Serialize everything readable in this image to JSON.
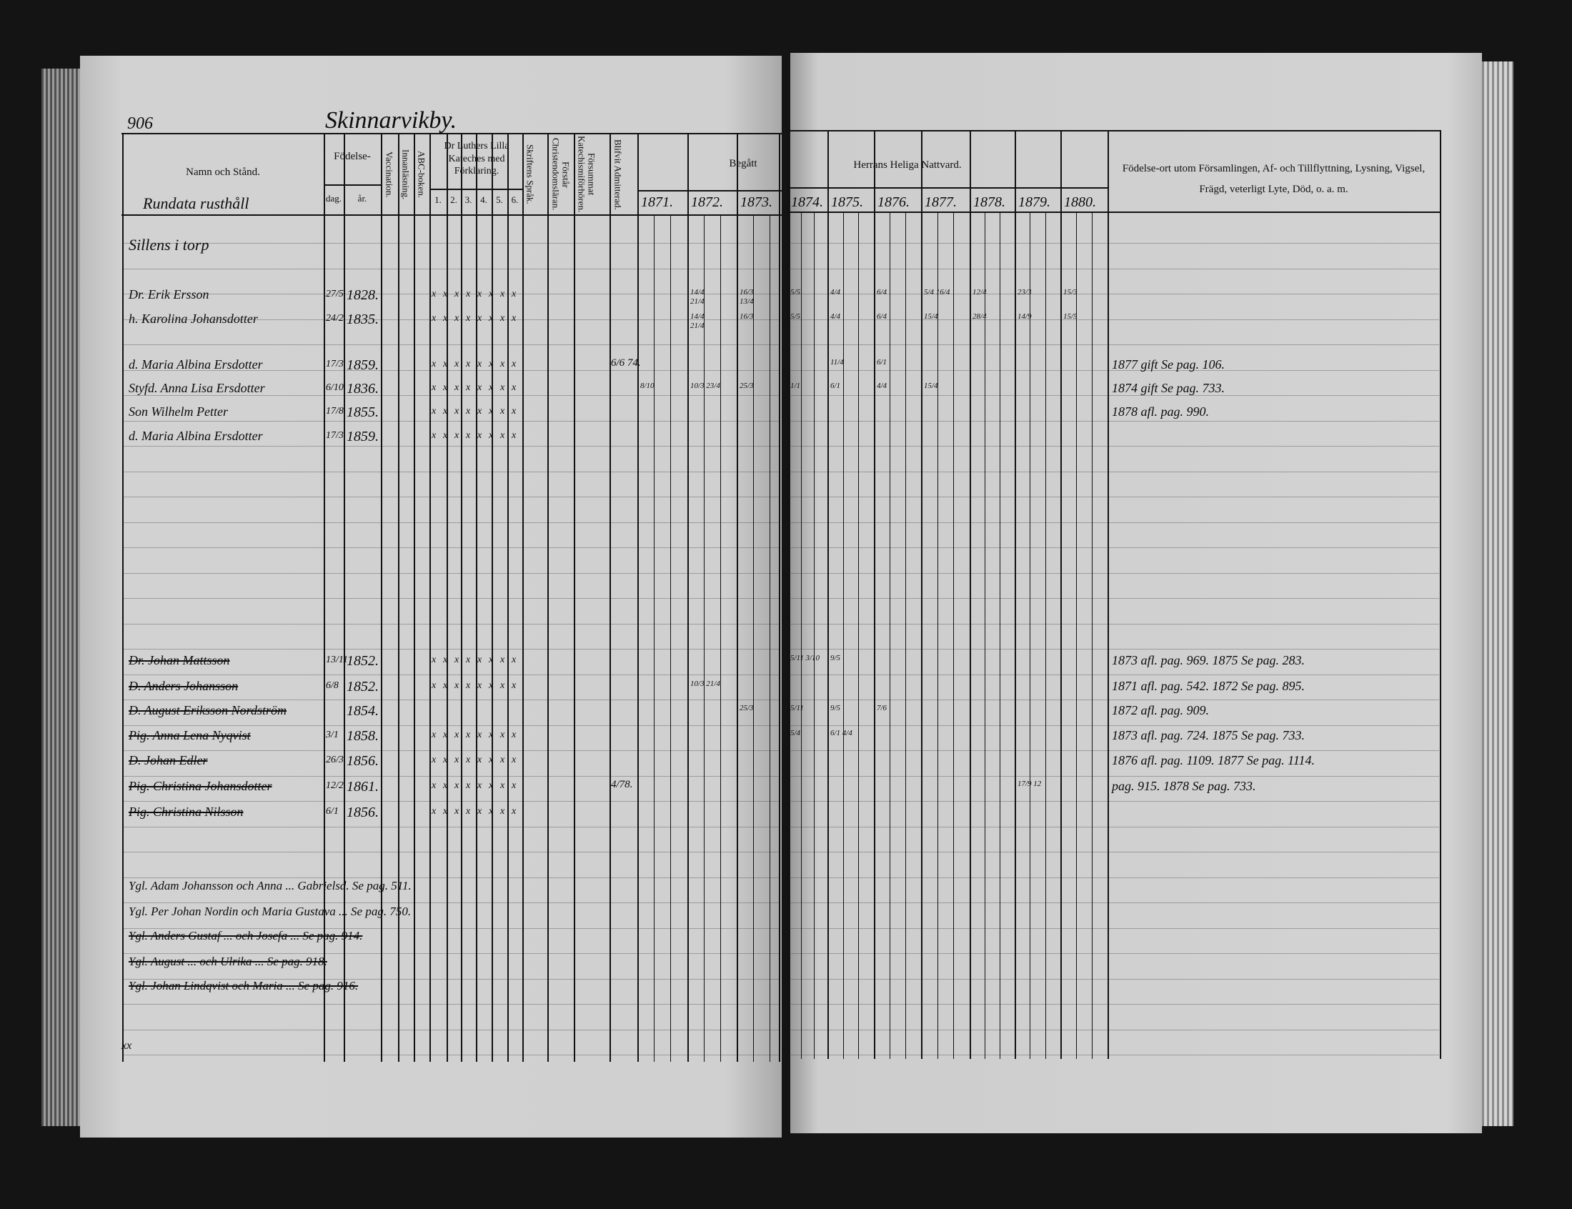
{
  "page_number": "906",
  "village_title": "Skinnarvikby.",
  "header": {
    "name_col": "Namn och Stånd.",
    "birth": "Födelse-",
    "birth_day": "dag.",
    "birth_year": "år.",
    "vaccination": "Vaccination.",
    "reading": "Innanläsning.",
    "abc": "ABC-boken.",
    "catechism": "Dr Luthers Lilla Kateches med Förklaring.",
    "catechism_parts": [
      "1.",
      "2.",
      "3.",
      "4.",
      "5.",
      "6."
    ],
    "scripture": "Skriftens Språk.",
    "understanding": "Förstår Christendomsläran.",
    "neglect": "Försummat Katechismiförhören.",
    "admitted": "Blifvit Admitterad.",
    "begatt": "Begått",
    "communion": "Herrans Heliga Nattvard.",
    "years": [
      "1871.",
      "1872.",
      "1873.",
      "1874.",
      "1875.",
      "1876.",
      "1877.",
      "1878.",
      "1879.",
      "1880."
    ],
    "remarks": "Födelse-ort utom Församlingen, Af- och Tillflyttning, Lysning, Vigsel, Frägd, veterligt Lyte, Död, o. a. m."
  },
  "name_header_handwritten": "Rundata rusthåll",
  "entries": [
    {
      "name": "Sillens i torp",
      "day": "",
      "year": "",
      "struck": false,
      "remark": "",
      "marks": []
    },
    {
      "name": "Dr. Erik Ersson",
      "day": "27/5",
      "year": "1828.",
      "struck": false,
      "remark": "",
      "marks": [
        {
          "y": 1,
          "t": "14/4"
        },
        {
          "y": 1,
          "t": "21/4"
        },
        {
          "y": 2,
          "t": "16/3"
        },
        {
          "y": 2,
          "t": "13/4"
        },
        {
          "y": 3,
          "t": "5/5"
        },
        {
          "y": 4,
          "t": "4/4"
        },
        {
          "y": 5,
          "t": "6/4"
        },
        {
          "y": 6,
          "t": "5/4 16/4"
        },
        {
          "y": 7,
          "t": "12/4"
        },
        {
          "y": 8,
          "t": "23/3"
        },
        {
          "y": 9,
          "t": "15/3"
        }
      ]
    },
    {
      "name": "h. Karolina Johansdotter",
      "day": "24/2",
      "year": "1835.",
      "struck": false,
      "remark": "",
      "marks": [
        {
          "y": 1,
          "t": "14/4"
        },
        {
          "y": 1,
          "t": "21/4"
        },
        {
          "y": 2,
          "t": "16/3"
        },
        {
          "y": 3,
          "t": "5/5"
        },
        {
          "y": 4,
          "t": "4/4"
        },
        {
          "y": 5,
          "t": "6/4"
        },
        {
          "y": 6,
          "t": "15/4"
        },
        {
          "y": 7,
          "t": "28/4"
        },
        {
          "y": 8,
          "t": "14/9"
        },
        {
          "y": 9,
          "t": "15/5"
        }
      ]
    },
    {
      "name": "d. Maria Albina Ersdotter",
      "day": "17/3",
      "year": "1859.",
      "struck": false,
      "remark": "1877 gift Se pag. 106.",
      "admitted": "6/6 74.",
      "marks": [
        {
          "y": 4,
          "t": "11/4"
        },
        {
          "y": 5,
          "t": "6/1"
        }
      ]
    },
    {
      "name": "Styfd. Anna Lisa Ersdotter",
      "day": "6/10",
      "year": "1836.",
      "struck": false,
      "remark": "1874 gift Se pag. 733.",
      "marks": [
        {
          "y": 0,
          "t": "8/10"
        },
        {
          "y": 1,
          "t": "10/3 23/4"
        },
        {
          "y": 2,
          "t": "25/3"
        },
        {
          "y": 3,
          "t": "1/1"
        },
        {
          "y": 4,
          "t": "6/1"
        },
        {
          "y": 5,
          "t": "4/4"
        },
        {
          "y": 6,
          "t": "15/4"
        }
      ]
    },
    {
      "name": "Son Wilhelm Petter",
      "day": "17/8",
      "year": "1855.",
      "struck": false,
      "remark": "1878 afl. pag. 990.",
      "marks": []
    },
    {
      "name": "d. Maria Albina Ersdotter",
      "day": "17/3",
      "year": "1859.",
      "struck": false,
      "remark": "",
      "marks": []
    },
    {
      "name": "Dr. Johan Mattsson",
      "day": "13/11",
      "year": "1852.",
      "struck": true,
      "remark": "1873 afl. pag. 969. 1875 Se pag. 283.",
      "marks": [
        {
          "y": 3,
          "t": "5/11 3/10"
        },
        {
          "y": 4,
          "t": "9/5"
        }
      ]
    },
    {
      "name": "D. Anders Johansson",
      "day": "6/8",
      "year": "1852.",
      "struck": true,
      "remark": "1871 afl. pag. 542. 1872 Se pag. 895.",
      "marks": [
        {
          "y": 1,
          "t": "10/3 21/4"
        }
      ]
    },
    {
      "name": "D. August Eriksson Nordström",
      "day": "",
      "year": "1854.",
      "struck": true,
      "remark": "1872 afl. pag. 909.",
      "marks": [
        {
          "y": 2,
          "t": "25/3"
        },
        {
          "y": 3,
          "t": "5/11"
        },
        {
          "y": 4,
          "t": "9/5"
        },
        {
          "y": 5,
          "t": "7/6"
        }
      ]
    },
    {
      "name": "Pig. Anna Lena Nyqvist",
      "day": "3/1",
      "year": "1858.",
      "struck": true,
      "remark": "1873 afl. pag. 724. 1875 Se pag. 733.",
      "marks": [
        {
          "y": 3,
          "t": "5/4"
        },
        {
          "y": 4,
          "t": "6/1 4/4"
        }
      ]
    },
    {
      "name": "D. Johan Edler",
      "day": "26/3",
      "year": "1856.",
      "struck": true,
      "remark": "1876 afl. pag. 1109. 1877 Se pag. 1114.",
      "marks": []
    },
    {
      "name": "Pig. Christina Johansdotter",
      "day": "12/2",
      "year": "1861.",
      "struck": true,
      "remark": "pag. 915. 1878 Se pag. 733.",
      "admitted": "4/78.",
      "marks": [
        {
          "y": 8,
          "t": "17/9 12"
        }
      ]
    },
    {
      "name": "Pig. Christina Nilsson",
      "day": "6/1",
      "year": "1856.",
      "struck": true,
      "remark": "",
      "marks": []
    }
  ],
  "notes": [
    {
      "text": "Ygl. Adam Johansson och Anna ... Gabrielsd. Se pag. 511.",
      "struck": false
    },
    {
      "text": "Ygl. Per Johan Nordin och Maria Gustava ... Se pag. 750.",
      "struck": false
    },
    {
      "text": "Ygl. Anders Gustaf ... och Josefa ... Se pag. 914.",
      "struck": true
    },
    {
      "text": "Ygl. August ... och Ulrika ... Se pag. 918.",
      "struck": true
    },
    {
      "text": "Ygl. Johan Lindqvist och Maria ... Se pag. 916.",
      "struck": true
    }
  ],
  "footer_mark": "xx"
}
